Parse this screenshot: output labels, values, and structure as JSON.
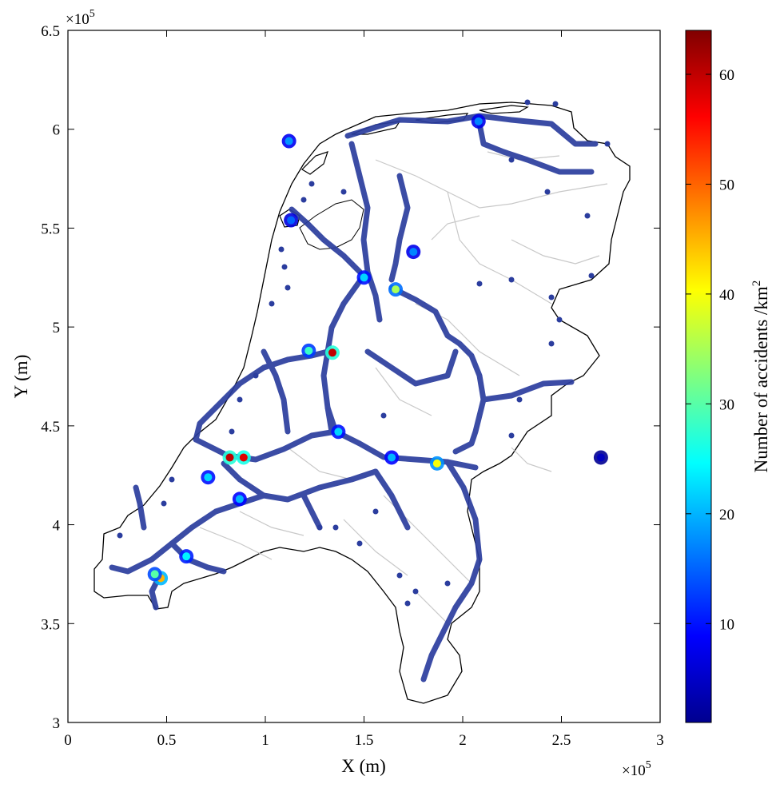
{
  "chart_data": {
    "type": "heatmap",
    "title": "",
    "xlabel": "X (m)",
    "ylabel": "Y (m)",
    "x_exponent_label": "×10",
    "x_exponent_power": "5",
    "y_exponent_label": "×10",
    "y_exponent_power": "5",
    "xlim": [
      0,
      300000
    ],
    "ylim": [
      300000,
      650000
    ],
    "xticks": [
      0,
      50000,
      100000,
      150000,
      200000,
      250000,
      300000
    ],
    "xtick_labels": [
      "0",
      "0.5",
      "1",
      "1.5",
      "2",
      "2.5",
      "3"
    ],
    "yticks": [
      300000,
      350000,
      400000,
      450000,
      500000,
      550000,
      600000,
      650000
    ],
    "ytick_labels": [
      "3",
      "3.5",
      "4",
      "4.5",
      "5",
      "5.5",
      "6",
      "6.5"
    ],
    "grid": false,
    "colorbar": {
      "label": "Number of accidents /km",
      "label_power": "2",
      "range": [
        1,
        64
      ],
      "ticks": [
        10,
        20,
        30,
        40,
        50,
        60
      ],
      "tick_labels": [
        "10",
        "20",
        "30",
        "40",
        "50",
        "60"
      ],
      "colormap": "jet"
    },
    "hotspots": [
      {
        "x": 82000,
        "y": 434000,
        "value": 60
      },
      {
        "x": 89000,
        "y": 434000,
        "value": 58
      },
      {
        "x": 134000,
        "y": 487000,
        "value": 60
      },
      {
        "x": 122000,
        "y": 488000,
        "value": 28
      },
      {
        "x": 47000,
        "y": 373000,
        "value": 45
      },
      {
        "x": 44000,
        "y": 375000,
        "value": 30
      },
      {
        "x": 187000,
        "y": 431000,
        "value": 40
      },
      {
        "x": 166000,
        "y": 519000,
        "value": 35
      },
      {
        "x": 150000,
        "y": 525000,
        "value": 22
      },
      {
        "x": 137000,
        "y": 447000,
        "value": 22
      },
      {
        "x": 60000,
        "y": 384000,
        "value": 24
      },
      {
        "x": 71000,
        "y": 424000,
        "value": 22
      },
      {
        "x": 87000,
        "y": 413000,
        "value": 20
      },
      {
        "x": 164000,
        "y": 434000,
        "value": 20
      },
      {
        "x": 112000,
        "y": 594000,
        "value": 18
      },
      {
        "x": 208000,
        "y": 604000,
        "value": 17
      },
      {
        "x": 175000,
        "y": 538000,
        "value": 17
      },
      {
        "x": 113000,
        "y": 554000,
        "value": 15
      },
      {
        "x": 270000,
        "y": 434000,
        "value": 5
      }
    ]
  }
}
